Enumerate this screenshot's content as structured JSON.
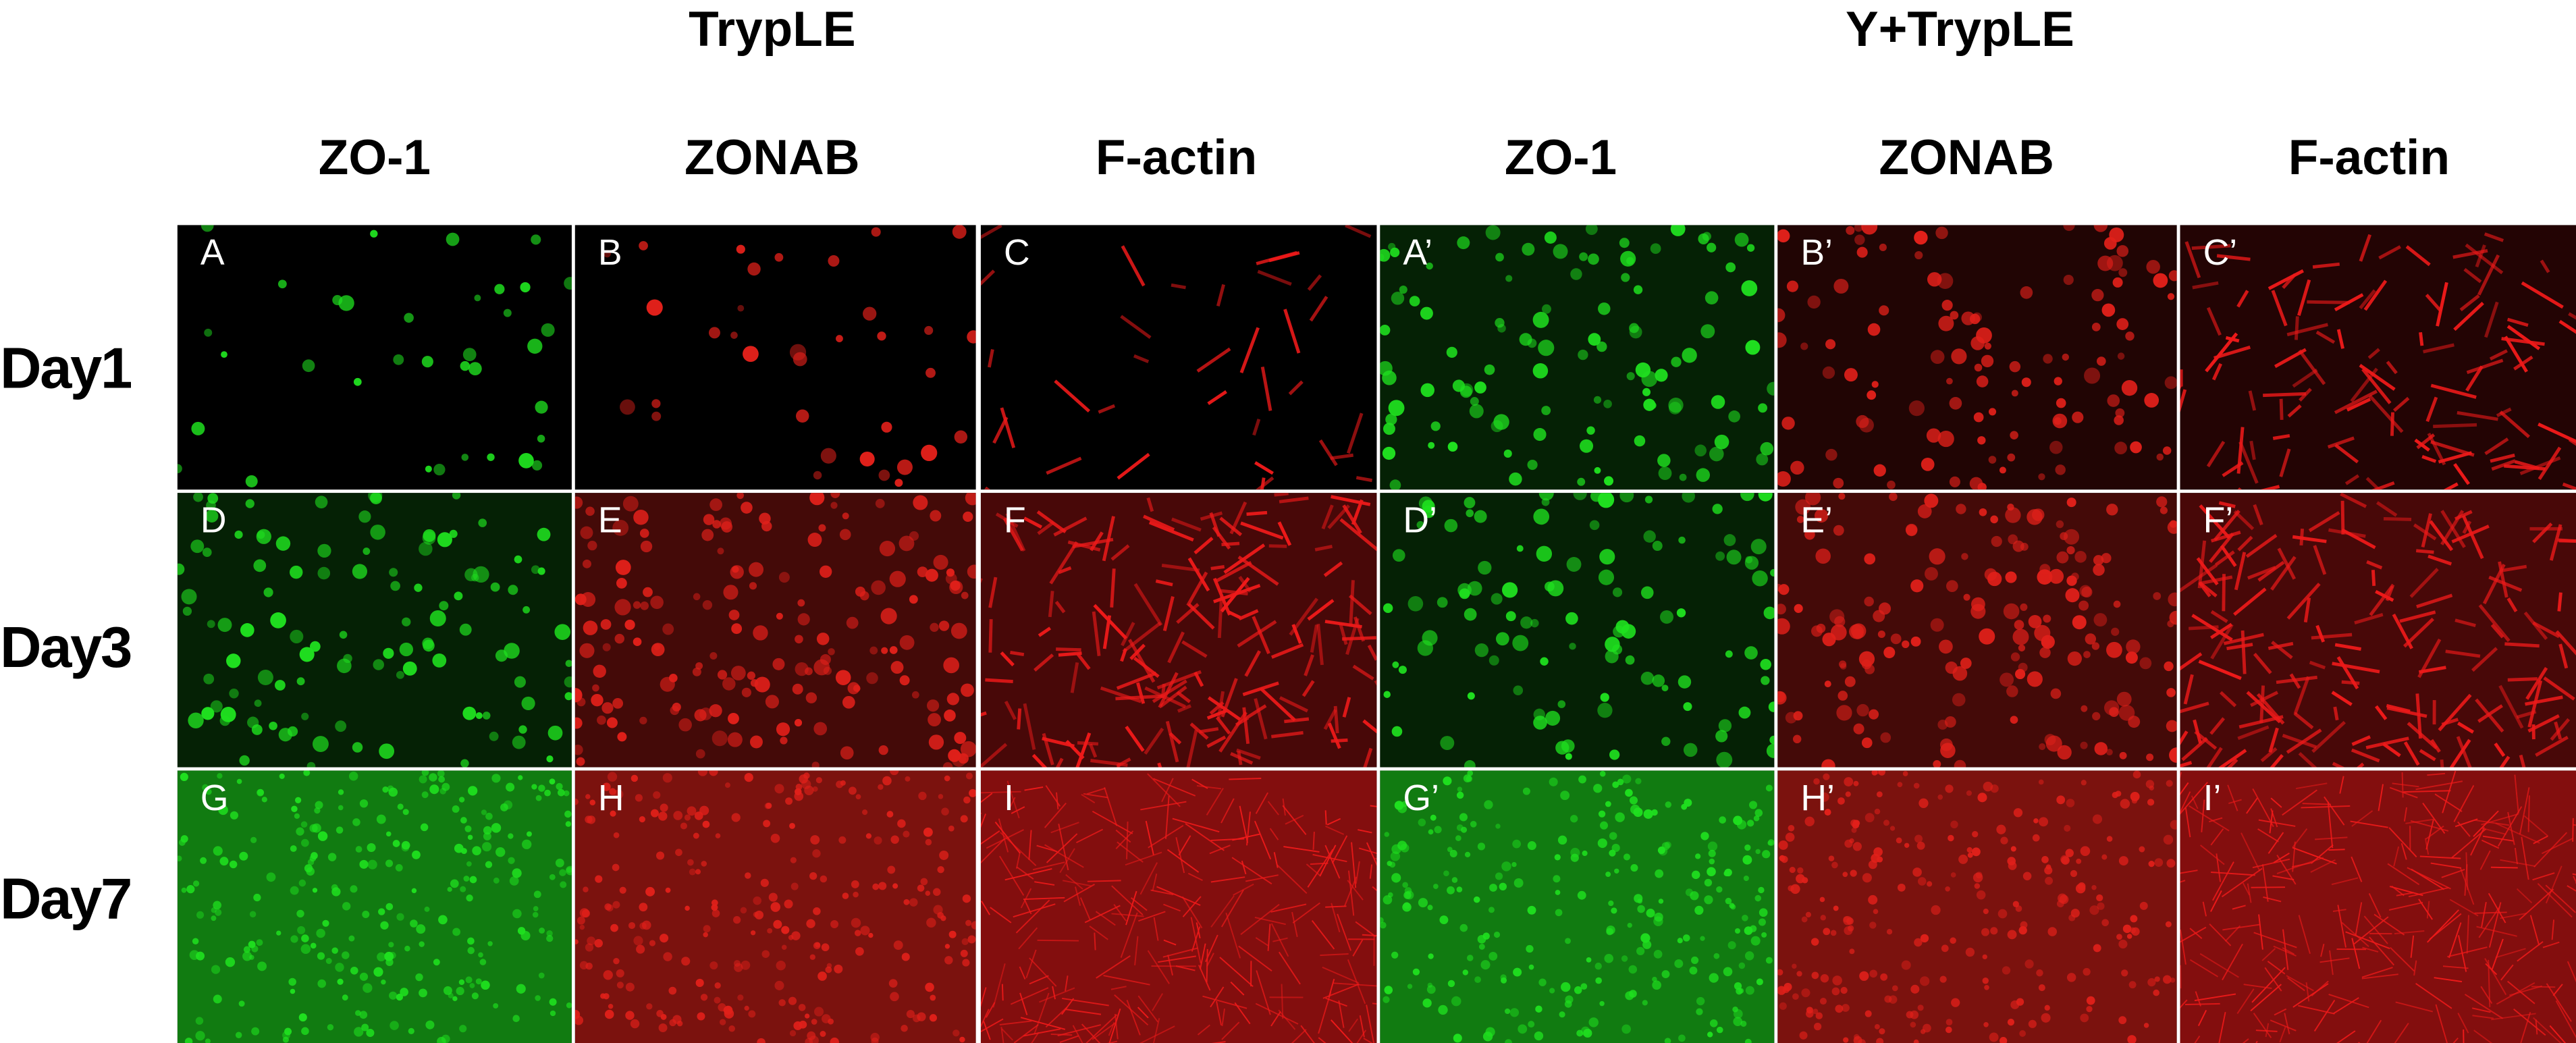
{
  "groups": [
    {
      "label": "TrypLE"
    },
    {
      "label": "Y+TrypLE"
    }
  ],
  "columns": [
    {
      "label": "ZO-1"
    },
    {
      "label": "ZONAB"
    },
    {
      "label": "F-actin"
    },
    {
      "label": "ZO-1"
    },
    {
      "label": "ZONAB"
    },
    {
      "label": "F-actin"
    }
  ],
  "rows": [
    {
      "label": "Day1"
    },
    {
      "label": "Day3"
    },
    {
      "label": "Day7"
    }
  ],
  "colors": {
    "ZO-1": "#1fe01f",
    "ZONAB": "#e0201a",
    "F-actin": "#ee1a1a"
  },
  "panels": [
    {
      "label": "A",
      "marker": "ZO-1",
      "density": "sparse"
    },
    {
      "label": "B",
      "marker": "ZONAB",
      "density": "sparse"
    },
    {
      "label": "C",
      "marker": "F-actin",
      "density": "sparse"
    },
    {
      "label": "A’",
      "marker": "ZO-1",
      "density": "medium"
    },
    {
      "label": "B’",
      "marker": "ZONAB",
      "density": "medium"
    },
    {
      "label": "C’",
      "marker": "F-actin",
      "density": "medium"
    },
    {
      "label": "D",
      "marker": "ZO-1",
      "density": "medium"
    },
    {
      "label": "E",
      "marker": "ZONAB",
      "density": "dense"
    },
    {
      "label": "F",
      "marker": "F-actin",
      "density": "dense"
    },
    {
      "label": "D’",
      "marker": "ZO-1",
      "density": "medium"
    },
    {
      "label": "E’",
      "marker": "ZONAB",
      "density": "dense"
    },
    {
      "label": "F’",
      "marker": "F-actin",
      "density": "dense"
    },
    {
      "label": "G",
      "marker": "ZO-1",
      "density": "confluent"
    },
    {
      "label": "H",
      "marker": "ZONAB",
      "density": "confluent"
    },
    {
      "label": "I",
      "marker": "F-actin",
      "density": "confluent"
    },
    {
      "label": "G’",
      "marker": "ZO-1",
      "density": "confluent"
    },
    {
      "label": "H’",
      "marker": "ZONAB",
      "density": "confluent"
    },
    {
      "label": "I’",
      "marker": "F-actin",
      "density": "confluent"
    }
  ]
}
